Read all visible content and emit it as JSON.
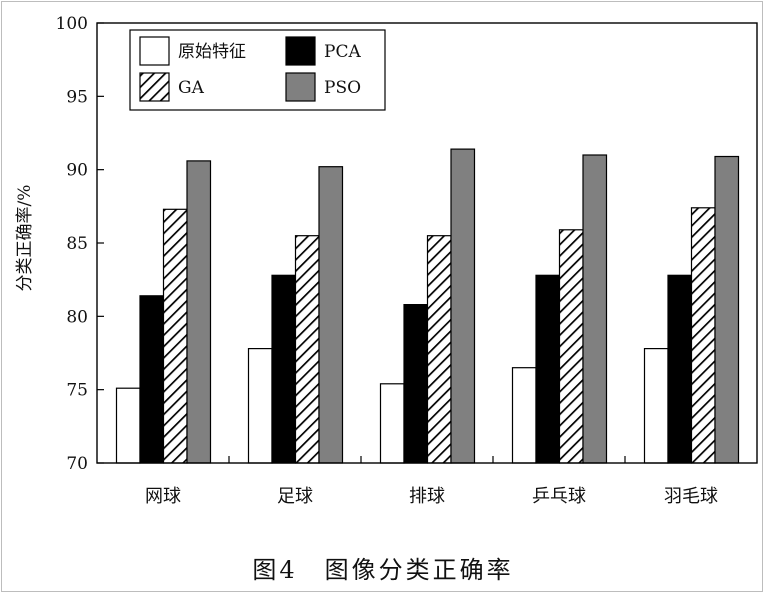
{
  "chart_data": {
    "type": "bar",
    "categories": [
      "网球",
      "足球",
      "排球",
      "乒乓球",
      "羽毛球"
    ],
    "series": [
      {
        "name": "原始特征",
        "fill": "#ffffff",
        "pattern": "none",
        "values": [
          75.1,
          77.8,
          75.4,
          76.5,
          77.8
        ]
      },
      {
        "name": "PCA",
        "fill": "#000000",
        "pattern": "none",
        "values": [
          81.4,
          82.8,
          80.8,
          82.8,
          82.8
        ]
      },
      {
        "name": "GA",
        "fill": "#ffffff",
        "pattern": "diagonal-hatch",
        "values": [
          87.3,
          85.5,
          85.5,
          85.9,
          87.4
        ]
      },
      {
        "name": "PSO",
        "fill": "#808080",
        "pattern": "none",
        "values": [
          90.6,
          90.2,
          91.4,
          91.0,
          90.9
        ]
      }
    ],
    "ylabel": "分类正确率/%",
    "xlabel": "",
    "ylim": [
      70,
      100
    ],
    "yticks": [
      70,
      75,
      80,
      85,
      90,
      95,
      100
    ],
    "legend_placement": "top-left",
    "grid": false
  },
  "caption": "图4　图像分类正确率"
}
